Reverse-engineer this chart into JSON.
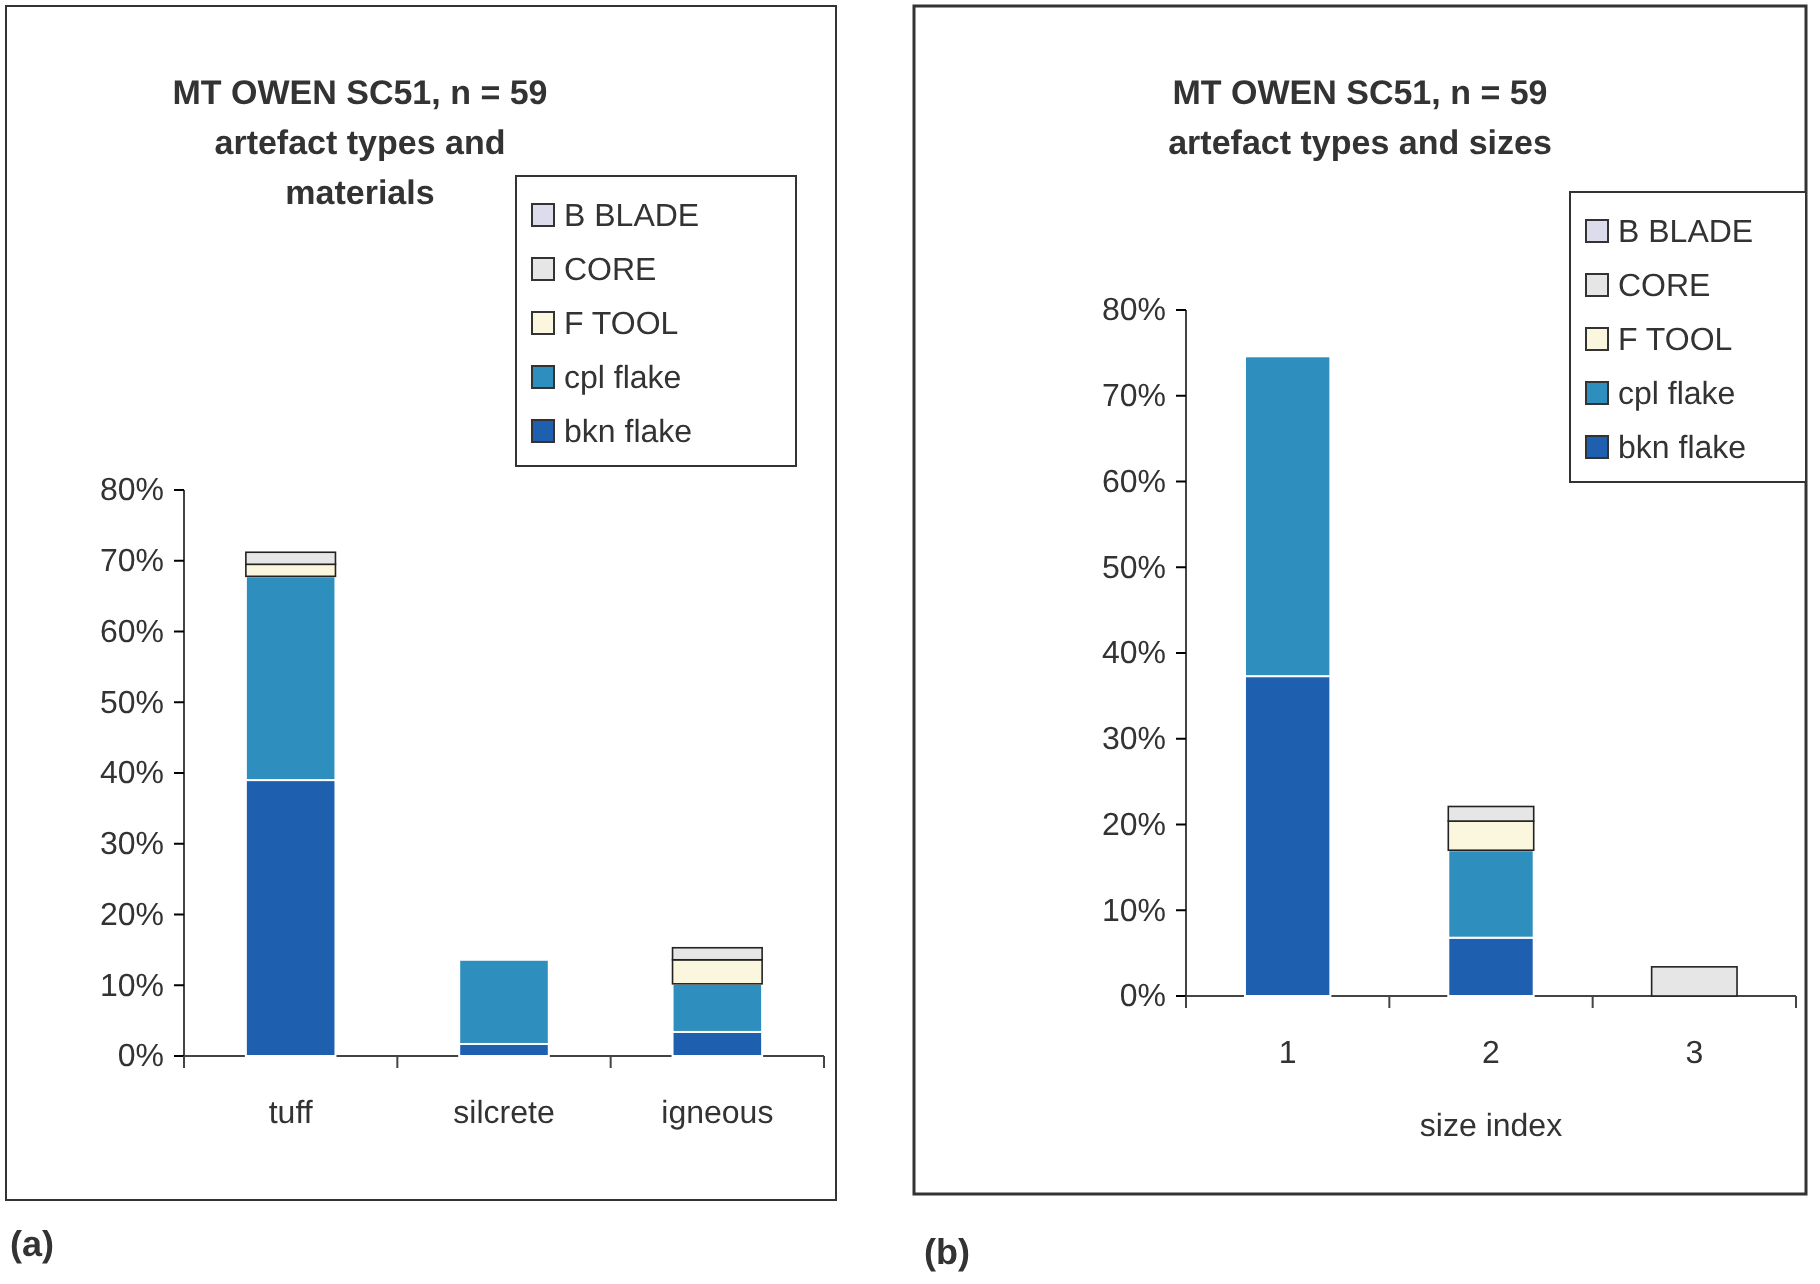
{
  "chart_data": [
    {
      "type": "bar",
      "title": "MT OWEN SC51, n = 59\nartefact types and\nmaterials",
      "categories": [
        "tuff",
        "silcrete",
        "igneous"
      ],
      "stacked": true,
      "ylim": [
        0,
        80
      ],
      "yticks": [
        {
          "value": 0,
          "label": "0%"
        },
        {
          "value": 10,
          "label": "10%"
        },
        {
          "value": 20,
          "label": "20%"
        },
        {
          "value": 30,
          "label": "30%"
        },
        {
          "value": 40,
          "label": "40%"
        },
        {
          "value": 50,
          "label": "50%"
        },
        {
          "value": 60,
          "label": "60%"
        },
        {
          "value": 70,
          "label": "70%"
        },
        {
          "value": 80,
          "label": "80%"
        }
      ],
      "grid": false,
      "legend": "top right",
      "annotations": [
        "(a)"
      ],
      "series": [
        {
          "name": "bkn flake",
          "color": "#1f5fb0",
          "values": [
            39.0,
            1.7,
            3.4
          ]
        },
        {
          "name": "cpl flake",
          "color": "#2e8fbf",
          "values": [
            28.8,
            11.9,
            6.8
          ]
        },
        {
          "name": "F TOOL",
          "color": "#fbf6de",
          "values": [
            1.7,
            0,
            3.4
          ]
        },
        {
          "name": "CORE",
          "color": "#e6e6e6",
          "values": [
            1.7,
            0,
            1.7
          ]
        },
        {
          "name": "B BLADE",
          "color": "#dcdcec",
          "values": [
            0,
            0,
            0
          ]
        }
      ]
    },
    {
      "type": "bar",
      "title": "MT OWEN  SC51, n = 59\nartefact types and sizes",
      "xlabel": "size index",
      "categories": [
        "1",
        "2",
        "3"
      ],
      "stacked": true,
      "ylim": [
        0,
        80
      ],
      "yticks": [
        {
          "value": 0,
          "label": "0%"
        },
        {
          "value": 10,
          "label": "10%"
        },
        {
          "value": 20,
          "label": "20%"
        },
        {
          "value": 30,
          "label": "30%"
        },
        {
          "value": 40,
          "label": "40%"
        },
        {
          "value": 50,
          "label": "50%"
        },
        {
          "value": 60,
          "label": "60%"
        },
        {
          "value": 70,
          "label": "70%"
        },
        {
          "value": 80,
          "label": "80%"
        }
      ],
      "grid": false,
      "legend": "top right",
      "annotations": [
        "(b)"
      ],
      "series": [
        {
          "name": "bkn flake",
          "color": "#1f5fb0",
          "values": [
            37.3,
            6.8,
            0
          ]
        },
        {
          "name": "cpl flake",
          "color": "#2e8fbf",
          "values": [
            37.3,
            10.2,
            0
          ]
        },
        {
          "name": "F TOOL",
          "color": "#fbf6de",
          "values": [
            0,
            3.4,
            0
          ]
        },
        {
          "name": "CORE",
          "color": "#e6e6e6",
          "values": [
            0,
            1.7,
            3.4
          ]
        },
        {
          "name": "B BLADE",
          "color": "#dcdcec",
          "values": [
            0,
            0,
            0
          ]
        }
      ]
    }
  ]
}
